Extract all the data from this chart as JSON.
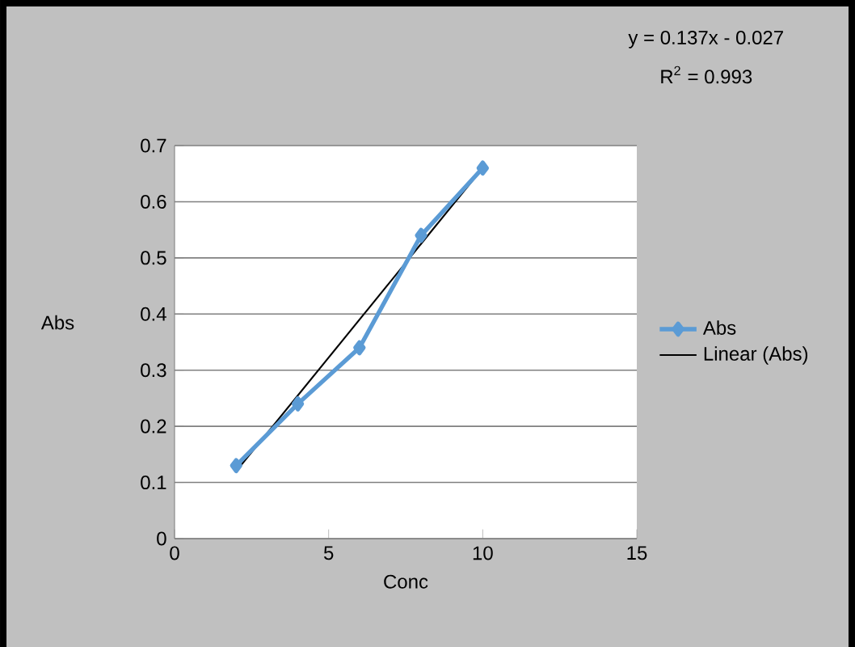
{
  "chart_data": {
    "type": "line",
    "xlabel": "Conc",
    "ylabel": "Abs",
    "annotations": [
      "y = 0.137x - 0.027",
      "R$^{2}$ = 0.993"
    ],
    "series": [
      {
        "name": "Abs",
        "color": "#5b9bd5",
        "x": [
          2,
          4,
          6,
          8,
          10
        ],
        "values": [
          0.13,
          0.24,
          0.34,
          0.54,
          0.66
        ],
        "marker": "diamond"
      },
      {
        "name": "Linear (Abs)",
        "color": "#000000",
        "x": [
          2,
          10
        ],
        "values": [
          0.12,
          0.66
        ],
        "marker": "none"
      }
    ],
    "xlim": [
      0,
      15
    ],
    "xticks": [
      0,
      5,
      10,
      15
    ],
    "ylim": [
      0,
      0.7
    ],
    "yticks": [
      0,
      0.1,
      0.2,
      0.3,
      0.4,
      0.5,
      0.6,
      0.7
    ],
    "grid": "y",
    "legend": "right"
  }
}
